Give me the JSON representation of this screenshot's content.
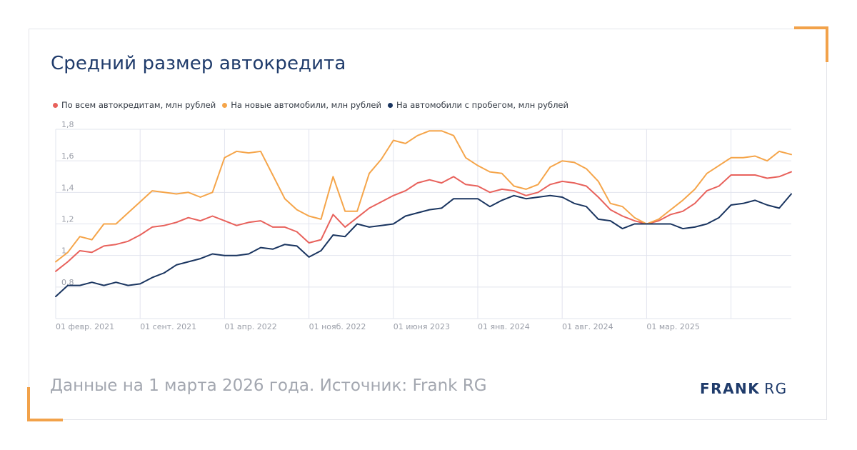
{
  "title": "Средний размер автокредита",
  "source_note": "Данные на 1 марта 2026 года. Источник: Frank RG",
  "logo": {
    "strong": "FRANK",
    "light": "RG"
  },
  "colors": {
    "all_loans": "#e8625c",
    "new_cars": "#f5a54a",
    "used_cars": "#1a3560",
    "grid": "#e2e4ee",
    "tick": "#9a9ea8"
  },
  "chart_data": {
    "type": "line",
    "ylim": [
      0.6,
      1.8
    ],
    "yticks": [
      0.8,
      1,
      1.2,
      1.4,
      1.6,
      1.8
    ],
    "ytick_labels": [
      "0,8",
      "1",
      "1,2",
      "1,4",
      "1,6",
      "1,8"
    ],
    "xtick_labels": [
      "01 февр. 2021",
      "01 сент. 2021",
      "01 апр. 2022",
      "01 нояб. 2022",
      "01 июня 2023",
      "01 янв. 2024",
      "01 авг. 2024",
      "01 мар. 2025"
    ],
    "xtick_index": [
      0,
      7,
      14,
      21,
      28,
      35,
      42,
      49
    ],
    "x": [
      "2021-02",
      "2021-03",
      "2021-04",
      "2021-05",
      "2021-06",
      "2021-07",
      "2021-08",
      "2021-09",
      "2021-10",
      "2021-11",
      "2021-12",
      "2022-01",
      "2022-02",
      "2022-03",
      "2022-04",
      "2022-05",
      "2022-06",
      "2022-07",
      "2022-08",
      "2022-09",
      "2022-10",
      "2022-11",
      "2022-12",
      "2023-01",
      "2023-02",
      "2023-03",
      "2023-04",
      "2023-05",
      "2023-06",
      "2023-07",
      "2023-08",
      "2023-09",
      "2023-10",
      "2023-11",
      "2023-12",
      "2024-01",
      "2024-02",
      "2024-03",
      "2024-04",
      "2024-05",
      "2024-06",
      "2024-07",
      "2024-08",
      "2024-09",
      "2024-10",
      "2024-11",
      "2024-12",
      "2025-01",
      "2025-02",
      "2025-03",
      "2025-04",
      "2025-05",
      "2025-06",
      "2025-07",
      "2025-08",
      "2025-09",
      "2025-10",
      "2025-11",
      "2025-12",
      "2026-01",
      "2026-02",
      "2026-03"
    ],
    "series": [
      {
        "name": "По всем автокредитам, млн рублей",
        "color_key": "all_loans",
        "values": [
          0.9,
          0.96,
          1.03,
          1.02,
          1.06,
          1.07,
          1.09,
          1.13,
          1.18,
          1.19,
          1.21,
          1.24,
          1.22,
          1.25,
          1.22,
          1.19,
          1.21,
          1.22,
          1.18,
          1.18,
          1.15,
          1.08,
          1.1,
          1.26,
          1.18,
          1.24,
          1.3,
          1.34,
          1.38,
          1.41,
          1.46,
          1.48,
          1.46,
          1.5,
          1.45,
          1.44,
          1.4,
          1.42,
          1.41,
          1.38,
          1.4,
          1.45,
          1.47,
          1.46,
          1.44,
          1.37,
          1.29,
          1.25,
          1.22,
          1.2,
          1.22,
          1.26,
          1.28,
          1.33,
          1.41,
          1.44,
          1.51,
          1.51,
          1.51,
          1.49,
          1.5,
          1.53
        ]
      },
      {
        "name": "На новые автомобили, млн рублей",
        "color_key": "new_cars",
        "values": [
          0.96,
          1.02,
          1.12,
          1.1,
          1.2,
          1.2,
          1.27,
          1.34,
          1.41,
          1.4,
          1.39,
          1.4,
          1.37,
          1.4,
          1.62,
          1.66,
          1.65,
          1.66,
          1.51,
          1.36,
          1.29,
          1.25,
          1.23,
          1.5,
          1.28,
          1.28,
          1.52,
          1.61,
          1.73,
          1.71,
          1.76,
          1.79,
          1.79,
          1.76,
          1.62,
          1.57,
          1.53,
          1.52,
          1.44,
          1.42,
          1.45,
          1.56,
          1.6,
          1.59,
          1.55,
          1.47,
          1.33,
          1.31,
          1.24,
          1.2,
          1.23,
          1.29,
          1.35,
          1.42,
          1.52,
          1.57,
          1.62,
          1.62,
          1.63,
          1.6,
          1.66,
          1.64
        ]
      },
      {
        "name": "На автомобили с пробегом, млн рублей",
        "color_key": "used_cars",
        "values": [
          0.74,
          0.81,
          0.81,
          0.83,
          0.81,
          0.83,
          0.81,
          0.82,
          0.86,
          0.89,
          0.94,
          0.96,
          0.98,
          1.01,
          1.0,
          1.0,
          1.01,
          1.05,
          1.04,
          1.07,
          1.06,
          0.99,
          1.03,
          1.13,
          1.12,
          1.2,
          1.18,
          1.19,
          1.2,
          1.25,
          1.27,
          1.29,
          1.3,
          1.36,
          1.36,
          1.36,
          1.31,
          1.35,
          1.38,
          1.36,
          1.37,
          1.38,
          1.37,
          1.33,
          1.31,
          1.23,
          1.22,
          1.17,
          1.2,
          1.2,
          1.2,
          1.2,
          1.17,
          1.18,
          1.2,
          1.24,
          1.32,
          1.33,
          1.35,
          1.32,
          1.3,
          1.39
        ]
      }
    ]
  }
}
